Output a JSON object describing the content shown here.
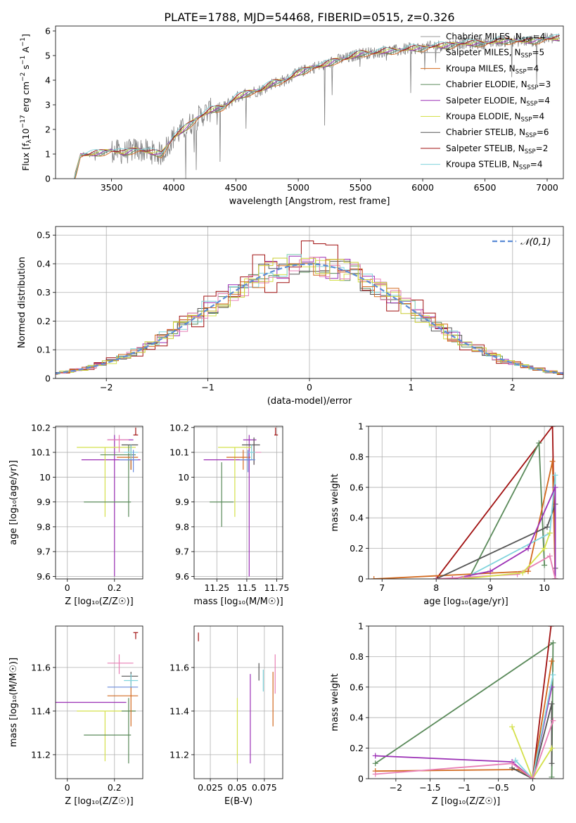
{
  "figure_title": "PLATE=1788, MJD=54468, FIBERID=0515, z=0.326",
  "series_colors": [
    "#ff7f0e",
    "#8c8c8c",
    "#d2691e",
    "#5a8a5a",
    "#9b2fb5",
    "#d4e04a",
    "#555555",
    "#a01010",
    "#7fd3dc",
    "#6a8cdc",
    "#e87fb5",
    "#c8cc30",
    "#3a8a3a"
  ],
  "chart_data": [
    {
      "id": "spectrum",
      "type": "line",
      "xlabel": "wavelength [Angstrom, rest frame]",
      "ylabel_parts": [
        "Flux [f",
        "λ",
        "10",
        "−17",
        " erg cm",
        "−2",
        " s",
        "−1",
        " A",
        "−1",
        "]"
      ],
      "xlim": [
        3050,
        7130
      ],
      "ylim": [
        0,
        6.2
      ],
      "xticks": [
        3500,
        4000,
        4500,
        5000,
        5500,
        6000,
        6500,
        7000
      ],
      "yticks": [
        0,
        1,
        2,
        3,
        4,
        5,
        6
      ],
      "legend_position": "top-right",
      "legend": [
        {
          "name": "Chabrier MILES",
          "nssp": "4",
          "color": "#9a9a9a"
        },
        {
          "name": "Salpeter MILES",
          "nssp": "5",
          "color": "#8c8c8c"
        },
        {
          "name": "Kroupa MILES",
          "nssp": "4",
          "color": "#d2691e"
        },
        {
          "name": "Chabrier ELODIE",
          "nssp": "3",
          "color": "#5a8a5a"
        },
        {
          "name": "Salpeter ELODIE",
          "nssp": "4",
          "color": "#9b2fb5"
        },
        {
          "name": "Kroupa ELODIE",
          "nssp": "4",
          "color": "#d4e04a"
        },
        {
          "name": "Chabrier STELIB",
          "nssp": "6",
          "color": "#555555"
        },
        {
          "name": "Salpeter STELIB",
          "nssp": "2",
          "color": "#a01010"
        },
        {
          "name": "Kroupa STELIB",
          "nssp": "4",
          "color": "#7fd3dc"
        }
      ],
      "nssp_label": "N",
      "nssp_sub": "SSP",
      "model_anchor": {
        "x": [
          3200,
          3250,
          3400,
          3500,
          3600,
          3700,
          3800,
          3900,
          4000,
          4100,
          4200,
          4300,
          4400,
          4500,
          4600,
          4700,
          4800,
          4900,
          5000,
          5100,
          5200,
          5300,
          5400,
          5500,
          5600,
          5700,
          5800,
          5900,
          6000,
          6100,
          6200,
          6300,
          6400,
          6500,
          6600,
          6700,
          6800,
          6900,
          7000,
          7100
        ],
        "y": [
          0,
          0.95,
          1.05,
          1.15,
          1.05,
          1.2,
          1.1,
          1.0,
          1.7,
          2.1,
          2.5,
          2.8,
          2.9,
          3.3,
          3.5,
          3.6,
          3.9,
          4.0,
          4.3,
          4.5,
          4.6,
          4.8,
          4.9,
          5.1,
          5.1,
          5.2,
          5.2,
          5.3,
          5.3,
          5.4,
          5.4,
          5.5,
          5.5,
          5.5,
          5.6,
          5.6,
          5.6,
          5.6,
          5.7,
          5.7
        ]
      }
    },
    {
      "id": "residuals",
      "type": "area",
      "xlabel": "(data-model)/error",
      "ylabel": "Normed distribution",
      "xlim": [
        -2.5,
        2.5
      ],
      "ylim": [
        0,
        0.53
      ],
      "xticks": [
        -2,
        -1,
        0,
        1,
        2
      ],
      "yticks": [
        0,
        0.1,
        0.2,
        0.3,
        0.4,
        0.5
      ],
      "legend": "𝒩(0,1)",
      "legend_position": "top-right",
      "gaussian": {
        "mean": 0,
        "sigma": 1,
        "color": "#5b8bd6"
      }
    },
    {
      "id": "age_vs_Z",
      "type": "scatter",
      "xlabel": "Z [log₁₀(Z/Z☉)]",
      "ylabel": "age  [log₁₀(age/yr)]",
      "xlim": [
        -0.05,
        0.32
      ],
      "ylim": [
        9.59,
        10.205
      ],
      "xticks": [
        0.0,
        0.2
      ],
      "yticks": [
        9.6,
        9.7,
        9.8,
        9.9,
        10.0,
        10.1,
        10.2
      ],
      "points": [
        {
          "x": 0.25,
          "y": 10.07,
          "xerr": [
            0.19,
            0.06
          ],
          "yerr": [
            0,
            0
          ],
          "color": "#9b2fb5"
        },
        {
          "x": 0.2,
          "y": 10.15,
          "xerr": [
            0.03,
            0.08
          ],
          "yerr": [
            0.55,
            0.02
          ],
          "color": "#9b2fb5"
        },
        {
          "x": 0.16,
          "y": 10.12,
          "xerr": [
            0.12,
            0.13
          ],
          "yerr": [
            0.28,
            0
          ],
          "color": "#d4e04a"
        },
        {
          "x": 0.26,
          "y": 10.09,
          "xerr": [
            0.12,
            0.03
          ],
          "yerr": [
            0.25,
            0.04
          ],
          "color": "#5a8a5a"
        },
        {
          "x": 0.17,
          "y": 9.9,
          "xerr": [
            0.1,
            0.1
          ],
          "yerr": [
            0,
            0
          ],
          "color": "#5a8a5a"
        },
        {
          "x": 0.22,
          "y": 10.15,
          "xerr": [
            0.05,
            0.04
          ],
          "yerr": [
            0.05,
            0.02
          ],
          "color": "#e87fb5"
        },
        {
          "x": 0.27,
          "y": 10.13,
          "xerr": [
            0.04,
            0.03
          ],
          "yerr": [
            0.1,
            0
          ],
          "color": "#555555"
        },
        {
          "x": 0.29,
          "y": 10.17,
          "xerr": [
            0.01,
            0.01
          ],
          "yerr": [
            0,
            0.03
          ],
          "color": "#a01010"
        },
        {
          "x": 0.27,
          "y": 10.08,
          "xerr": [
            0.06,
            0.03
          ],
          "yerr": [
            0.05,
            0.03
          ],
          "color": "#d2691e"
        },
        {
          "x": 0.27,
          "y": 10.1,
          "xerr": [
            0.03,
            0.03
          ],
          "yerr": [
            0.03,
            0.03
          ],
          "color": "#7fd3dc"
        },
        {
          "x": 0.28,
          "y": 10.07,
          "xerr": [
            0.06,
            0.02
          ],
          "yerr": [
            0.05,
            0.04
          ],
          "color": "#6a8cdc"
        }
      ]
    },
    {
      "id": "age_vs_mass",
      "type": "scatter",
      "xlabel": "mass [log₁₀(M/M☉)]",
      "xlim": [
        11.06,
        11.8
      ],
      "ylim": [
        9.59,
        10.205
      ],
      "xticks": [
        11.25,
        11.5,
        11.75
      ],
      "yticks": [
        9.6,
        9.7,
        9.8,
        9.9,
        10.0,
        10.1,
        10.2
      ],
      "points": [
        {
          "x": 11.44,
          "y": 10.07,
          "xerr": [
            0.3,
            0.1
          ],
          "yerr": [
            0,
            0
          ],
          "color": "#9b2fb5"
        },
        {
          "x": 11.52,
          "y": 10.15,
          "xerr": [
            0.05,
            0.06
          ],
          "yerr": [
            0.55,
            0.02
          ],
          "color": "#9b2fb5"
        },
        {
          "x": 11.4,
          "y": 10.12,
          "xerr": [
            0.14,
            0.14
          ],
          "yerr": [
            0.28,
            0
          ],
          "color": "#d4e04a"
        },
        {
          "x": 11.29,
          "y": 9.9,
          "xerr": [
            0.1,
            0.1
          ],
          "yerr": [
            0.1,
            0.16
          ],
          "color": "#5a8a5a"
        },
        {
          "x": 11.56,
          "y": 10.1,
          "xerr": [
            0.05,
            0.06
          ],
          "yerr": [
            0.05,
            0.05
          ],
          "color": "#e87fb5"
        },
        {
          "x": 11.56,
          "y": 10.13,
          "xerr": [
            0.1,
            0.05
          ],
          "yerr": [
            0.08,
            0.03
          ],
          "color": "#555555"
        },
        {
          "x": 11.74,
          "y": 10.17,
          "xerr": [
            0.01,
            0.02
          ],
          "yerr": [
            0,
            0.03
          ],
          "color": "#a01010"
        },
        {
          "x": 11.47,
          "y": 10.08,
          "xerr": [
            0.14,
            0.06
          ],
          "yerr": [
            0.05,
            0.03
          ],
          "color": "#d2691e"
        },
        {
          "x": 11.54,
          "y": 10.1,
          "xerr": [
            0.03,
            0.03
          ],
          "yerr": [
            0.03,
            0.03
          ],
          "color": "#7fd3dc"
        },
        {
          "x": 11.51,
          "y": 10.07,
          "xerr": [
            0.07,
            0.06
          ],
          "yerr": [
            0.05,
            0.04
          ],
          "color": "#6a8cdc"
        }
      ]
    },
    {
      "id": "massweight_vs_age",
      "type": "line",
      "xlabel": "age  [log₁₀(age/yr)]",
      "ylabel": "mass weight",
      "xlim": [
        6.75,
        10.35
      ],
      "ylim": [
        0,
        1.0
      ],
      "xticks": [
        7,
        8,
        9,
        10
      ],
      "yticks": [
        0,
        0.2,
        0.4,
        0.6,
        0.8,
        1.0
      ],
      "series": [
        {
          "color": "#a01010",
          "x": [
            8.0,
            10.15,
            10.2
          ],
          "y": [
            0.0,
            1.0,
            0.0
          ]
        },
        {
          "color": "#5a8a5a",
          "x": [
            8.6,
            9.9,
            10.0
          ],
          "y": [
            0.0,
            0.89,
            0.09
          ]
        },
        {
          "color": "#d2691e",
          "x": [
            6.85,
            9.7,
            10.15,
            10.2
          ],
          "y": [
            0.0,
            0.05,
            0.77,
            0.0
          ]
        },
        {
          "color": "#555555",
          "x": [
            8.0,
            10.05,
            10.2,
            10.2
          ],
          "y": [
            0.0,
            0.34,
            0.49,
            0.07
          ]
        },
        {
          "color": "#7fd3dc",
          "x": [
            8.5,
            10.1,
            10.2,
            10.2
          ],
          "y": [
            0.0,
            0.3,
            0.68,
            0.0
          ]
        },
        {
          "color": "#9b2fb5",
          "x": [
            8.3,
            9.0,
            9.7,
            10.2,
            10.2
          ],
          "y": [
            0.0,
            0.05,
            0.2,
            0.6,
            0.0
          ]
        },
        {
          "color": "#e87fb5",
          "x": [
            8.0,
            9.5,
            10.1,
            10.2
          ],
          "y": [
            0.0,
            0.03,
            0.15,
            0.0
          ]
        },
        {
          "color": "#d4e04a",
          "x": [
            8.5,
            9.6,
            10.0,
            10.1
          ],
          "y": [
            0.0,
            0.04,
            0.2,
            0.3
          ]
        }
      ]
    },
    {
      "id": "mass_vs_Z",
      "type": "scatter",
      "xlabel": "Z [log₁₀(Z/Z☉)]",
      "ylabel": "mass [log₁₀(M/M☉)]",
      "xlim": [
        -0.05,
        0.32
      ],
      "ylim": [
        11.09,
        11.79
      ],
      "xticks": [
        0.0,
        0.2
      ],
      "yticks": [
        11.2,
        11.4,
        11.6
      ],
      "points": [
        {
          "x": 0.25,
          "y": 11.44,
          "xerr": [
            0.3,
            0.0
          ],
          "yerr": [
            0,
            0
          ],
          "color": "#9b2fb5"
        },
        {
          "x": 0.16,
          "y": 11.4,
          "xerr": [
            0.12,
            0.13
          ],
          "yerr": [
            0.23,
            0
          ],
          "color": "#d4e04a"
        },
        {
          "x": 0.17,
          "y": 11.29,
          "xerr": [
            0.1,
            0.1
          ],
          "yerr": [
            0,
            0
          ],
          "color": "#5a8a5a"
        },
        {
          "x": 0.26,
          "y": 11.4,
          "xerr": [
            0.03,
            0.03
          ],
          "yerr": [
            0.24,
            0.06
          ],
          "color": "#5a8a5a"
        },
        {
          "x": 0.22,
          "y": 11.62,
          "xerr": [
            0.05,
            0.06
          ],
          "yerr": [
            0.05,
            0.04
          ],
          "color": "#e87fb5"
        },
        {
          "x": 0.27,
          "y": 11.56,
          "xerr": [
            0.04,
            0.03
          ],
          "yerr": [
            0.04,
            0.02
          ],
          "color": "#555555"
        },
        {
          "x": 0.29,
          "y": 11.76,
          "xerr": [
            0.01,
            0.01
          ],
          "yerr": [
            0.03,
            0
          ],
          "color": "#a01010"
        },
        {
          "x": 0.27,
          "y": 11.47,
          "xerr": [
            0.1,
            0.03
          ],
          "yerr": [
            0.14,
            0.05
          ],
          "color": "#d2691e"
        },
        {
          "x": 0.27,
          "y": 11.54,
          "xerr": [
            0.03,
            0.03
          ],
          "yerr": [
            0.03,
            0.03
          ],
          "color": "#7fd3dc"
        },
        {
          "x": 0.27,
          "y": 11.51,
          "xerr": [
            0.1,
            0.03
          ],
          "yerr": [
            0,
            0
          ],
          "color": "#6a8cdc"
        }
      ]
    },
    {
      "id": "mass_vs_EBV",
      "type": "scatter",
      "xlabel": "E(B-V)",
      "xlim": [
        0.01,
        0.092
      ],
      "ylim": [
        11.09,
        11.79
      ],
      "xticks": [
        0.025,
        0.05,
        0.075
      ],
      "yticks": [
        11.2,
        11.4,
        11.6
      ],
      "points": [
        {
          "x": 0.014,
          "y": 11.74,
          "xerr": [
            0,
            0
          ],
          "yerr": [
            0.02,
            0.02
          ],
          "color": "#a01010"
        },
        {
          "x": 0.05,
          "y": 11.33,
          "xerr": [
            0,
            0
          ],
          "yerr": [
            0.17,
            0.13
          ],
          "color": "#d4e04a"
        },
        {
          "x": 0.062,
          "y": 11.4,
          "xerr": [
            0,
            0
          ],
          "yerr": [
            0.24,
            0.17
          ],
          "color": "#9b2fb5"
        },
        {
          "x": 0.07,
          "y": 11.58,
          "xerr": [
            0,
            0
          ],
          "yerr": [
            0.04,
            0.04
          ],
          "color": "#555555"
        },
        {
          "x": 0.074,
          "y": 11.53,
          "xerr": [
            0,
            0
          ],
          "yerr": [
            0.04,
            0.06
          ],
          "color": "#7fd3dc"
        },
        {
          "x": 0.083,
          "y": 11.46,
          "xerr": [
            0,
            0
          ],
          "yerr": [
            0.13,
            0.12
          ],
          "color": "#d2691e"
        },
        {
          "x": 0.085,
          "y": 11.55,
          "xerr": [
            0,
            0
          ],
          "yerr": [
            0.07,
            0.11
          ],
          "color": "#e87fb5"
        }
      ]
    },
    {
      "id": "massweight_vs_Z",
      "type": "line",
      "xlabel": "Z [log₁₀(Z/Z☉)]",
      "ylabel": "mass weight",
      "xlim": [
        -2.4,
        0.45
      ],
      "ylim": [
        0,
        1.0
      ],
      "xticks": [
        -2.0,
        -1.5,
        -1.0,
        -0.5,
        0.0
      ],
      "yticks": [
        0,
        0.2,
        0.4,
        0.6,
        0.8,
        1.0
      ],
      "series": [
        {
          "color": "#5a8a5a",
          "x": [
            -2.3,
            0.3,
            0.28
          ],
          "y": [
            0.1,
            0.89,
            0.01
          ]
        },
        {
          "color": "#9b2fb5",
          "x": [
            -2.3,
            -0.3,
            0.0,
            0.28
          ],
          "y": [
            0.15,
            0.11,
            0.0,
            0.6
          ]
        },
        {
          "color": "#a01010",
          "x": [
            0.0,
            0.27
          ],
          "y": [
            0.0,
            1.0
          ]
        },
        {
          "color": "#d2691e",
          "x": [
            -2.3,
            -0.2,
            0.0,
            0.28
          ],
          "y": [
            0.05,
            0.06,
            0.0,
            0.77
          ]
        },
        {
          "color": "#555555",
          "x": [
            -0.3,
            0.0,
            0.28,
            0.28
          ],
          "y": [
            0.07,
            0.0,
            0.49,
            0.1
          ]
        },
        {
          "color": "#7fd3dc",
          "x": [
            -0.25,
            0.0,
            0.3
          ],
          "y": [
            0.12,
            0.0,
            0.68
          ]
        },
        {
          "color": "#d4e04a",
          "x": [
            -0.3,
            0.0,
            0.28
          ],
          "y": [
            0.34,
            0.0,
            0.2
          ]
        },
        {
          "color": "#e87fb5",
          "x": [
            -2.3,
            -0.3,
            0.0,
            0.3
          ],
          "y": [
            0.03,
            0.1,
            0.0,
            0.38
          ]
        }
      ]
    }
  ]
}
